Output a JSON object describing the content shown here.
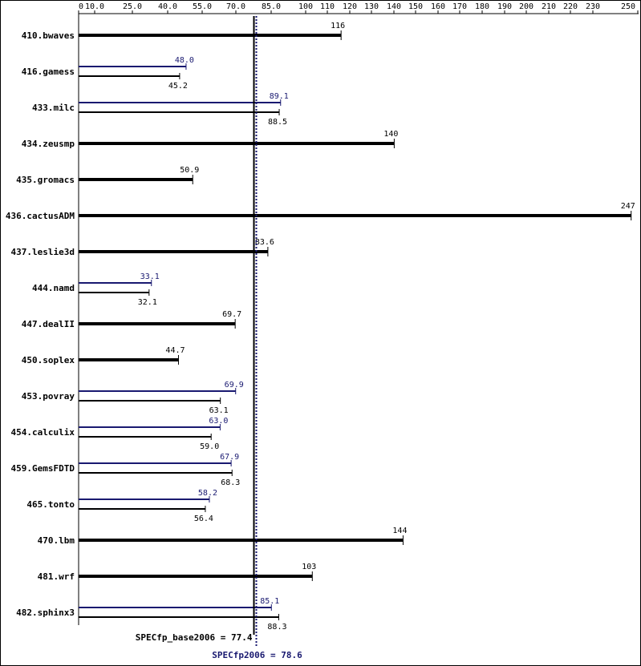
{
  "chart_data": {
    "type": "bar",
    "orientation": "horizontal",
    "x_ticks": [
      "0",
      "10.0",
      "25.0",
      "40.0",
      "55.0",
      "70.0",
      "85.0",
      "100",
      "110",
      "120",
      "130",
      "140",
      "150",
      "160",
      "170",
      "180",
      "190",
      "200",
      "210",
      "220",
      "230",
      "250"
    ],
    "xlim": [
      0,
      250
    ],
    "benchmarks": [
      {
        "name": "410.bwaves",
        "base": 116,
        "base_label": "116",
        "peak": null,
        "peak_label": ""
      },
      {
        "name": "416.gamess",
        "base": 45.2,
        "base_label": "45.2",
        "peak": 48.0,
        "peak_label": "48.0"
      },
      {
        "name": "433.milc",
        "base": 88.5,
        "base_label": "88.5",
        "peak": 89.1,
        "peak_label": "89.1"
      },
      {
        "name": "434.zeusmp",
        "base": 140,
        "base_label": "140",
        "peak": null,
        "peak_label": ""
      },
      {
        "name": "435.gromacs",
        "base": 50.9,
        "base_label": "50.9",
        "peak": null,
        "peak_label": ""
      },
      {
        "name": "436.cactusADM",
        "base": 247,
        "base_label": "247",
        "peak": null,
        "peak_label": ""
      },
      {
        "name": "437.leslie3d",
        "base": 83.6,
        "base_label": "83.6",
        "peak": null,
        "peak_label": ""
      },
      {
        "name": "444.namd",
        "base": 32.1,
        "base_label": "32.1",
        "peak": 33.1,
        "peak_label": "33.1"
      },
      {
        "name": "447.dealII",
        "base": 69.7,
        "base_label": "69.7",
        "peak": null,
        "peak_label": ""
      },
      {
        "name": "450.soplex",
        "base": 44.7,
        "base_label": "44.7",
        "peak": null,
        "peak_label": ""
      },
      {
        "name": "453.povray",
        "base": 63.1,
        "base_label": "63.1",
        "peak": 69.9,
        "peak_label": "69.9"
      },
      {
        "name": "454.calculix",
        "base": 59.0,
        "base_label": "59.0",
        "peak": 63.0,
        "peak_label": "63.0"
      },
      {
        "name": "459.GemsFDTD",
        "base": 68.3,
        "base_label": "68.3",
        "peak": 67.9,
        "peak_label": "67.9"
      },
      {
        "name": "465.tonto",
        "base": 56.4,
        "base_label": "56.4",
        "peak": 58.2,
        "peak_label": "58.2"
      },
      {
        "name": "470.lbm",
        "base": 144,
        "base_label": "144",
        "peak": null,
        "peak_label": ""
      },
      {
        "name": "481.wrf",
        "base": 103,
        "base_label": "103",
        "peak": null,
        "peak_label": ""
      },
      {
        "name": "482.sphinx3",
        "base": 88.3,
        "base_label": "88.3",
        "peak": 85.1,
        "peak_label": "85.1"
      }
    ],
    "base_score": 77.4,
    "base_score_label": "SPECfp_base2006 = 77.4",
    "peak_score": 78.6,
    "peak_score_label": "SPECfp2006 = 78.6",
    "colors": {
      "base": "#000000",
      "peak": "#191970"
    }
  }
}
